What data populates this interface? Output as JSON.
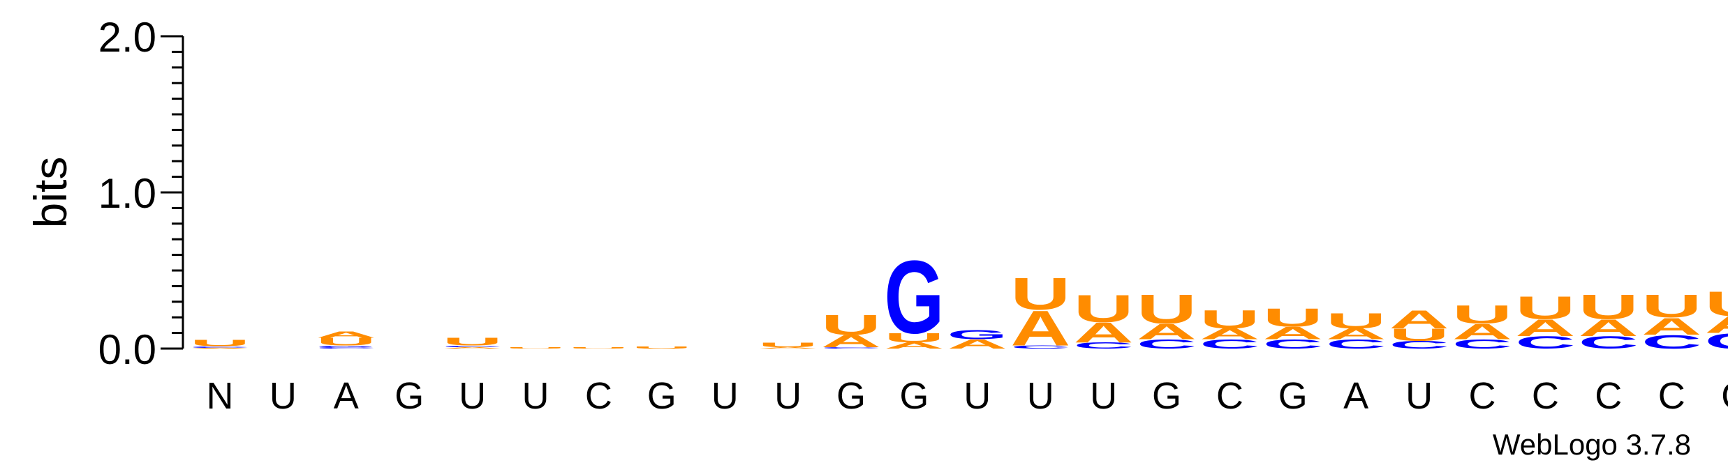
{
  "chart_data": {
    "type": "sequence-logo",
    "ylabel": "bits",
    "ylim": [
      0,
      2.0
    ],
    "y_ticks": [
      "0.0",
      "1.0",
      "2.0"
    ],
    "credit": "WebLogo 3.7.8",
    "colors": {
      "A": "#ff8c00",
      "U": "#ff8c00",
      "G": "#0000ff",
      "C": "#0000ff"
    },
    "positions": [
      {
        "label": "N",
        "stack": [
          {
            "letter": "A",
            "bits": 0.005
          },
          {
            "letter": "C",
            "bits": 0.01
          },
          {
            "letter": "U",
            "bits": 0.04
          }
        ]
      },
      {
        "label": "U",
        "stack": []
      },
      {
        "label": "A",
        "stack": [
          {
            "letter": "C",
            "bits": 0.01
          },
          {
            "letter": "G",
            "bits": 0.01
          },
          {
            "letter": "U",
            "bits": 0.05
          },
          {
            "letter": "A",
            "bits": 0.04
          }
        ]
      },
      {
        "label": "G",
        "stack": []
      },
      {
        "label": "U",
        "stack": [
          {
            "letter": "A",
            "bits": 0.01
          },
          {
            "letter": "C",
            "bits": 0.01
          },
          {
            "letter": "U",
            "bits": 0.05
          }
        ]
      },
      {
        "label": "U",
        "stack": [
          {
            "letter": "U",
            "bits": 0.01
          }
        ]
      },
      {
        "label": "C",
        "stack": [
          {
            "letter": "U",
            "bits": 0.01
          }
        ]
      },
      {
        "label": "G",
        "stack": [
          {
            "letter": "U",
            "bits": 0.015
          }
        ]
      },
      {
        "label": "U",
        "stack": []
      },
      {
        "label": "U",
        "stack": [
          {
            "letter": "A",
            "bits": 0.01
          },
          {
            "letter": "U",
            "bits": 0.03
          }
        ]
      },
      {
        "label": "G",
        "stack": [
          {
            "letter": "C",
            "bits": 0.01
          },
          {
            "letter": "A",
            "bits": 0.08
          },
          {
            "letter": "U",
            "bits": 0.13
          }
        ]
      },
      {
        "label": "G",
        "stack": [
          {
            "letter": "A",
            "bits": 0.04
          },
          {
            "letter": "U",
            "bits": 0.06
          },
          {
            "letter": "G",
            "bits": 0.48
          }
        ]
      },
      {
        "label": "U",
        "stack": [
          {
            "letter": "A",
            "bits": 0.06
          },
          {
            "letter": "G",
            "bits": 0.06
          }
        ]
      },
      {
        "label": "U",
        "stack": [
          {
            "letter": "C",
            "bits": 0.02
          },
          {
            "letter": "A",
            "bits": 0.23
          },
          {
            "letter": "U",
            "bits": 0.21
          }
        ]
      },
      {
        "label": "U",
        "stack": [
          {
            "letter": "C",
            "bits": 0.04
          },
          {
            "letter": "A",
            "bits": 0.13
          },
          {
            "letter": "U",
            "bits": 0.18
          }
        ]
      },
      {
        "label": "G",
        "stack": [
          {
            "letter": "C",
            "bits": 0.06
          },
          {
            "letter": "A",
            "bits": 0.1
          },
          {
            "letter": "U",
            "bits": 0.19
          }
        ]
      },
      {
        "label": "C",
        "stack": [
          {
            "letter": "C",
            "bits": 0.06
          },
          {
            "letter": "A",
            "bits": 0.07
          },
          {
            "letter": "U",
            "bits": 0.12
          }
        ]
      },
      {
        "label": "G",
        "stack": [
          {
            "letter": "C",
            "bits": 0.06
          },
          {
            "letter": "A",
            "bits": 0.08
          },
          {
            "letter": "U",
            "bits": 0.12
          }
        ]
      },
      {
        "label": "A",
        "stack": [
          {
            "letter": "C",
            "bits": 0.06
          },
          {
            "letter": "A",
            "bits": 0.07
          },
          {
            "letter": "U",
            "bits": 0.1
          }
        ]
      },
      {
        "label": "U",
        "stack": [
          {
            "letter": "C",
            "bits": 0.05
          },
          {
            "letter": "U",
            "bits": 0.08
          },
          {
            "letter": "A",
            "bits": 0.12
          }
        ]
      },
      {
        "label": "C",
        "stack": [
          {
            "letter": "C",
            "bits": 0.06
          },
          {
            "letter": "A",
            "bits": 0.1
          },
          {
            "letter": "U",
            "bits": 0.12
          }
        ]
      },
      {
        "label": "C",
        "stack": [
          {
            "letter": "C",
            "bits": 0.08
          },
          {
            "letter": "A",
            "bits": 0.11
          },
          {
            "letter": "U",
            "bits": 0.15
          }
        ]
      },
      {
        "label": "C",
        "stack": [
          {
            "letter": "C",
            "bits": 0.08
          },
          {
            "letter": "A",
            "bits": 0.11
          },
          {
            "letter": "U",
            "bits": 0.16
          }
        ]
      },
      {
        "label": "C",
        "stack": [
          {
            "letter": "C",
            "bits": 0.09
          },
          {
            "letter": "A",
            "bits": 0.11
          },
          {
            "letter": "U",
            "bits": 0.15
          }
        ]
      },
      {
        "label": "C",
        "stack": [
          {
            "letter": "C",
            "bits": 0.1
          },
          {
            "letter": "A",
            "bits": 0.11
          },
          {
            "letter": "U",
            "bits": 0.16
          }
        ]
      }
    ]
  }
}
